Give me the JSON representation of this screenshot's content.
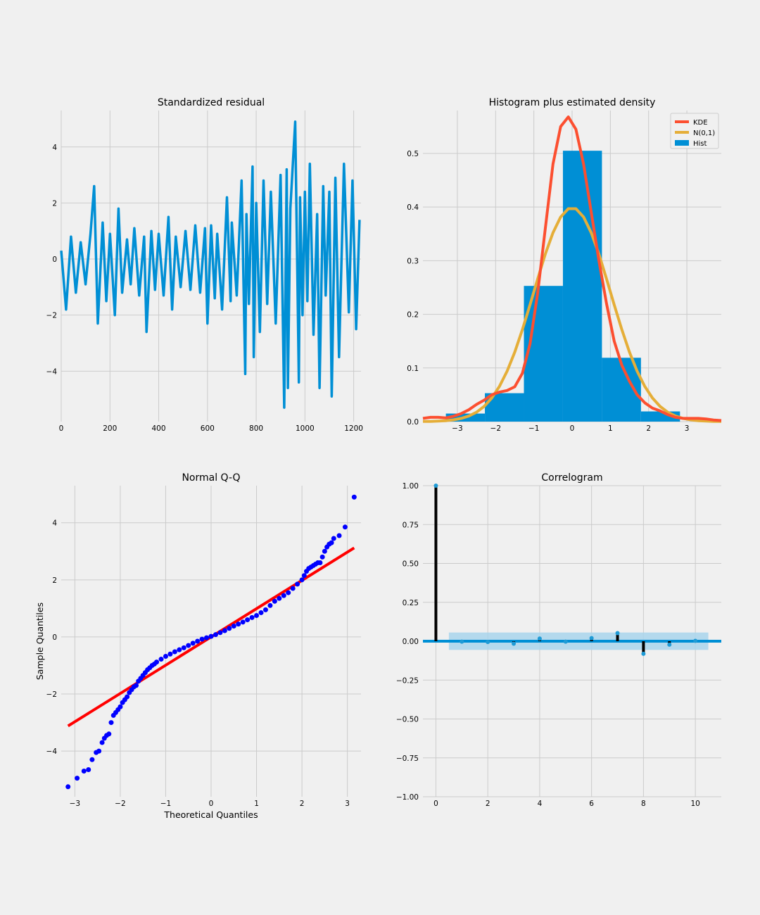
{
  "chart_data": [
    {
      "type": "line",
      "title": "Standardized residual",
      "xlabel": "",
      "ylabel": "",
      "xlim": [
        0,
        1230
      ],
      "ylim": [
        -5.8,
        5.3
      ],
      "xticks": [
        0,
        200,
        400,
        600,
        800,
        1000,
        1200
      ],
      "yticks": [
        -4,
        -2,
        0,
        2,
        4
      ],
      "xtick_labels": [
        "0",
        "200",
        "400",
        "600",
        "800",
        "1000",
        "1200"
      ],
      "ytick_labels": [
        "−4",
        "−2",
        "0",
        "2",
        "4"
      ],
      "grid": true,
      "series": [
        {
          "color": "#008fd5",
          "n": 1224,
          "x": [
            0,
            20,
            40,
            60,
            80,
            100,
            120,
            135,
            150,
            170,
            185,
            200,
            220,
            235,
            250,
            270,
            285,
            300,
            320,
            340,
            350,
            370,
            385,
            400,
            420,
            440,
            455,
            470,
            490,
            510,
            530,
            550,
            570,
            590,
            600,
            615,
            630,
            640,
            660,
            680,
            695,
            700,
            720,
            740,
            755,
            760,
            770,
            785,
            790,
            800,
            815,
            830,
            845,
            860,
            880,
            900,
            915,
            925,
            930,
            940,
            960,
            975,
            980,
            990,
            1000,
            1010,
            1020,
            1035,
            1050,
            1060,
            1075,
            1085,
            1100,
            1110,
            1125,
            1140,
            1160,
            1180,
            1195,
            1210,
            1224
          ],
          "y": [
            0.3,
            -1.8,
            0.8,
            -1.2,
            0.6,
            -0.9,
            0.9,
            2.6,
            -2.3,
            1.3,
            -1.5,
            0.9,
            -2.0,
            1.8,
            -1.2,
            0.7,
            -0.9,
            1.1,
            -1.3,
            0.8,
            -2.6,
            1.0,
            -1.1,
            0.9,
            -1.3,
            1.5,
            -1.8,
            0.8,
            -1.0,
            1.0,
            -1.1,
            1.2,
            -1.2,
            1.1,
            -2.3,
            1.2,
            -1.4,
            0.9,
            -1.8,
            2.2,
            -1.5,
            1.3,
            -1.3,
            2.8,
            -4.1,
            1.6,
            -1.6,
            3.3,
            -3.5,
            2.0,
            -2.6,
            2.8,
            -1.6,
            2.4,
            -2.3,
            3.0,
            -5.3,
            3.2,
            -4.6,
            1.8,
            4.9,
            -4.4,
            2.2,
            -2.0,
            2.4,
            -1.5,
            3.4,
            -2.7,
            1.6,
            -4.6,
            2.6,
            -1.3,
            2.4,
            -4.9,
            2.9,
            -3.5,
            3.4,
            -1.9,
            2.8,
            -2.5,
            1.4
          ]
        }
      ]
    },
    {
      "type": "bar",
      "title": "Histogram plus estimated density",
      "xlabel": "",
      "ylabel": "",
      "xlim": [
        -3.9,
        3.9
      ],
      "ylim": [
        0,
        0.58
      ],
      "xticks": [
        -3,
        -2,
        -1,
        0,
        1,
        2,
        3
      ],
      "yticks": [
        0.0,
        0.1,
        0.2,
        0.3,
        0.4,
        0.5
      ],
      "xtick_labels": [
        "−3",
        "−2",
        "−1",
        "0",
        "1",
        "2",
        "3"
      ],
      "ytick_labels": [
        "0.0",
        "0.1",
        "0.2",
        "0.3",
        "0.4",
        "0.5"
      ],
      "grid": true,
      "legend": "top-right",
      "series": [
        {
          "name": "KDE",
          "type": "line",
          "color": "#fc4f30",
          "x": [
            -3.9,
            -3.7,
            -3.5,
            -3.3,
            -3.1,
            -2.9,
            -2.7,
            -2.5,
            -2.3,
            -2.1,
            -1.9,
            -1.7,
            -1.5,
            -1.3,
            -1.1,
            -0.9,
            -0.7,
            -0.5,
            -0.3,
            -0.1,
            0.1,
            0.3,
            0.5,
            0.7,
            0.9,
            1.1,
            1.3,
            1.5,
            1.7,
            1.9,
            2.1,
            2.3,
            2.5,
            2.7,
            2.9,
            3.1,
            3.3,
            3.5,
            3.7,
            3.9
          ],
          "y": [
            0.006,
            0.008,
            0.008,
            0.007,
            0.01,
            0.015,
            0.022,
            0.032,
            0.04,
            0.05,
            0.055,
            0.058,
            0.065,
            0.09,
            0.145,
            0.24,
            0.36,
            0.48,
            0.55,
            0.568,
            0.545,
            0.48,
            0.39,
            0.3,
            0.22,
            0.15,
            0.105,
            0.075,
            0.05,
            0.035,
            0.025,
            0.02,
            0.013,
            0.008,
            0.006,
            0.006,
            0.006,
            0.005,
            0.003,
            0.002
          ]
        },
        {
          "name": "N(0,1)",
          "type": "line",
          "color": "#e5ae38",
          "x": [
            -3.9,
            -3.7,
            -3.5,
            -3.3,
            -3.1,
            -2.9,
            -2.7,
            -2.5,
            -2.3,
            -2.1,
            -1.9,
            -1.7,
            -1.5,
            -1.3,
            -1.1,
            -0.9,
            -0.7,
            -0.5,
            -0.3,
            -0.1,
            0.1,
            0.3,
            0.5,
            0.7,
            0.9,
            1.1,
            1.3,
            1.5,
            1.7,
            1.9,
            2.1,
            2.3,
            2.5,
            2.7,
            2.9,
            3.1,
            3.3,
            3.5,
            3.7,
            3.9
          ],
          "y": [
            0.0002,
            0.0004,
            0.0009,
            0.0017,
            0.0033,
            0.006,
            0.0104,
            0.0175,
            0.0283,
            0.044,
            0.0656,
            0.094,
            0.1295,
            0.1714,
            0.2179,
            0.2661,
            0.3123,
            0.3521,
            0.3814,
            0.397,
            0.397,
            0.3814,
            0.3521,
            0.3123,
            0.2661,
            0.2179,
            0.1714,
            0.1295,
            0.094,
            0.0656,
            0.044,
            0.0283,
            0.0175,
            0.0104,
            0.006,
            0.0033,
            0.0017,
            0.0009,
            0.0004,
            0.0002
          ]
        },
        {
          "name": "Hist",
          "type": "bar",
          "color": "#008fd5",
          "bin_edges": [
            -3.3,
            -2.28,
            -1.26,
            -0.24,
            0.78,
            1.8,
            2.82
          ],
          "values": [
            0.015,
            0.053,
            0.253,
            0.505,
            0.119,
            0.019
          ]
        }
      ]
    },
    {
      "type": "scatter",
      "title": "Normal Q-Q",
      "xlabel": "Theoretical Quantiles",
      "ylabel": "Sample Quantiles",
      "xlim": [
        -3.3,
        3.3
      ],
      "ylim": [
        -5.6,
        5.3
      ],
      "xticks": [
        -3,
        -2,
        -1,
        0,
        1,
        2,
        3
      ],
      "yticks": [
        -4,
        -2,
        0,
        2,
        4
      ],
      "xtick_labels": [
        "−3",
        "−2",
        "−1",
        "0",
        "1",
        "2",
        "3"
      ],
      "ytick_labels": [
        "−4",
        "−2",
        "0",
        "2",
        "4"
      ],
      "grid": true,
      "series": [
        {
          "type": "scatter",
          "color": "#0000ff",
          "x": [
            -3.15,
            -2.95,
            -2.8,
            -2.7,
            -2.62,
            -2.53,
            -2.47,
            -2.4,
            -2.35,
            -2.3,
            -2.25,
            -2.2,
            -2.15,
            -2.1,
            -2.05,
            -2.0,
            -1.95,
            -1.9,
            -1.85,
            -1.8,
            -1.75,
            -1.7,
            -1.65,
            -1.6,
            -1.55,
            -1.5,
            -1.45,
            -1.4,
            -1.35,
            -1.3,
            -1.25,
            -1.2,
            -1.1,
            -1.0,
            -0.9,
            -0.8,
            -0.7,
            -0.6,
            -0.5,
            -0.4,
            -0.3,
            -0.2,
            -0.1,
            0.0,
            0.1,
            0.2,
            0.3,
            0.4,
            0.5,
            0.6,
            0.7,
            0.8,
            0.9,
            1.0,
            1.1,
            1.2,
            1.3,
            1.4,
            1.5,
            1.6,
            1.7,
            1.8,
            1.9,
            2.0,
            2.05,
            2.1,
            2.15,
            2.2,
            2.25,
            2.3,
            2.35,
            2.4,
            2.45,
            2.5,
            2.55,
            2.6,
            2.65,
            2.7,
            2.82,
            2.95,
            3.15
          ],
          "y": [
            -5.25,
            -4.95,
            -4.7,
            -4.65,
            -4.3,
            -4.05,
            -4.0,
            -3.7,
            -3.55,
            -3.45,
            -3.4,
            -3.0,
            -2.75,
            -2.65,
            -2.55,
            -2.45,
            -2.3,
            -2.2,
            -2.1,
            -1.95,
            -1.85,
            -1.75,
            -1.7,
            -1.55,
            -1.45,
            -1.35,
            -1.25,
            -1.15,
            -1.08,
            -1.0,
            -0.95,
            -0.88,
            -0.78,
            -0.68,
            -0.6,
            -0.52,
            -0.45,
            -0.38,
            -0.3,
            -0.22,
            -0.15,
            -0.08,
            -0.03,
            0.02,
            0.08,
            0.15,
            0.22,
            0.3,
            0.38,
            0.45,
            0.52,
            0.6,
            0.68,
            0.75,
            0.85,
            0.95,
            1.1,
            1.25,
            1.35,
            1.45,
            1.55,
            1.7,
            1.85,
            2.0,
            2.15,
            2.3,
            2.4,
            2.45,
            2.5,
            2.55,
            2.6,
            2.6,
            2.8,
            3.0,
            3.15,
            3.25,
            3.3,
            3.45,
            3.55,
            3.85,
            4.9
          ]
        },
        {
          "type": "line",
          "color": "#ff0000",
          "x": [
            -3.15,
            3.15
          ],
          "y": [
            -3.12,
            3.12
          ]
        }
      ]
    },
    {
      "type": "bar",
      "title": "Correlogram",
      "xlabel": "",
      "ylabel": "",
      "xlim": [
        -0.5,
        11
      ],
      "ylim": [
        -1.0,
        1.0
      ],
      "xticks": [
        0,
        2,
        4,
        6,
        8,
        10
      ],
      "yticks": [
        -1.0,
        -0.75,
        -0.5,
        -0.25,
        0.0,
        0.25,
        0.5,
        0.75,
        1.0
      ],
      "xtick_labels": [
        "0",
        "2",
        "4",
        "6",
        "8",
        "10"
      ],
      "ytick_labels": [
        "−1.00",
        "−0.75",
        "−0.50",
        "−0.25",
        "0.00",
        "0.25",
        "0.50",
        "0.75",
        "1.00"
      ],
      "grid": true,
      "lags": [
        0,
        1,
        2,
        3,
        4,
        5,
        6,
        7,
        8,
        9,
        10
      ],
      "values": [
        1.0,
        -0.003,
        -0.005,
        -0.016,
        0.017,
        -0.003,
        0.02,
        0.052,
        -0.081,
        -0.022,
        0.002
      ],
      "confidence_band": [
        -0.056,
        0.056
      ],
      "colors": {
        "stem": "#000000",
        "marker": "#1f9bd6",
        "band": "#a9d5ec",
        "zero_line": "#008fd5"
      }
    }
  ]
}
